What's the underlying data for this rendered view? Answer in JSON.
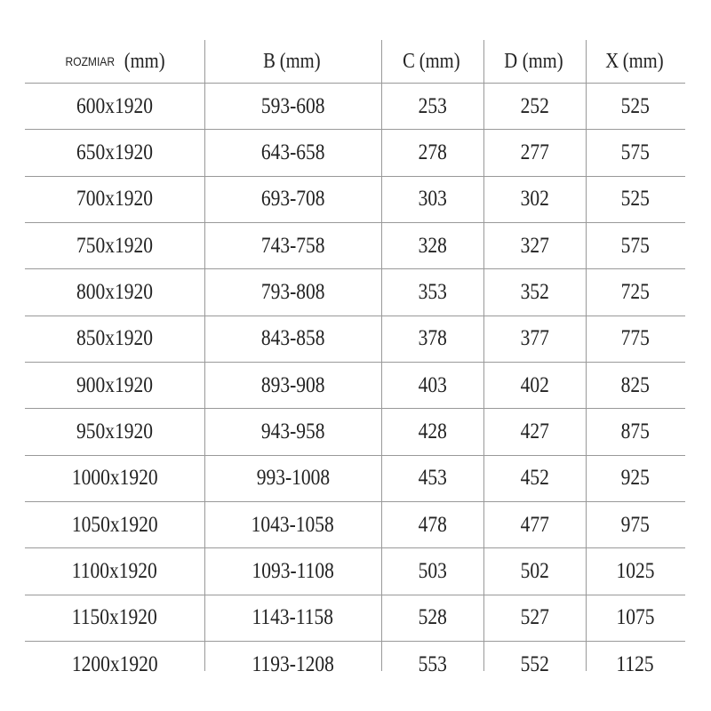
{
  "table": {
    "headers": [
      {
        "prefix": "ROZMIAR",
        "unit": "(mm)"
      },
      {
        "prefix": "B",
        "unit": "(mm)"
      },
      {
        "prefix": "C",
        "unit": "(mm)"
      },
      {
        "prefix": "D",
        "unit": "(mm)"
      },
      {
        "prefix": "X",
        "unit": "(mm)"
      }
    ],
    "rows": [
      [
        "600x1920",
        "593-608",
        "253",
        "252",
        "525"
      ],
      [
        "650x1920",
        "643-658",
        "278",
        "277",
        "575"
      ],
      [
        "700x1920",
        "693-708",
        "303",
        "302",
        "525"
      ],
      [
        "750x1920",
        "743-758",
        "328",
        "327",
        "575"
      ],
      [
        "800x1920",
        "793-808",
        "353",
        "352",
        "725"
      ],
      [
        "850x1920",
        "843-858",
        "378",
        "377",
        "775"
      ],
      [
        "900x1920",
        "893-908",
        "403",
        "402",
        "825"
      ],
      [
        "950x1920",
        "943-958",
        "428",
        "427",
        "875"
      ],
      [
        "1000x1920",
        "993-1008",
        "453",
        "452",
        "925"
      ],
      [
        "1050x1920",
        "1043-1058",
        "478",
        "477",
        "975"
      ],
      [
        "1100x1920",
        "1093-1108",
        "503",
        "502",
        "1025"
      ],
      [
        "1150x1920",
        "1143-1158",
        "528",
        "527",
        "1075"
      ],
      [
        "1200x1920",
        "1193-1208",
        "553",
        "552",
        "1125"
      ]
    ]
  }
}
